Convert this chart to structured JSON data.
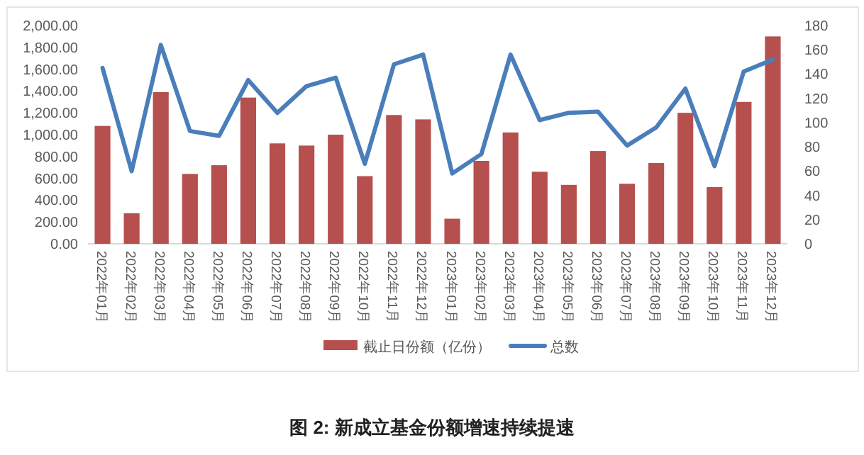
{
  "chart_data": {
    "type": "bar",
    "title": "图 2:  新成立基金份额增速持续提速",
    "categories": [
      "2022年01月",
      "2022年02月",
      "2022年03月",
      "2022年04月",
      "2022年05月",
      "2022年06月",
      "2022年07月",
      "2022年08月",
      "2022年09月",
      "2022年10月",
      "2022年11月",
      "2022年12月",
      "2023年01月",
      "2023年02月",
      "2023年03月",
      "2023年04月",
      "2023年05月",
      "2023年06月",
      "2023年07月",
      "2023年08月",
      "2023年09月",
      "2023年10月",
      "2023年11月",
      "2023年12月"
    ],
    "series": [
      {
        "name": "截止日份额（亿份）",
        "color": "#b5504f",
        "values": [
          1080,
          280,
          1390,
          640,
          720,
          1340,
          920,
          900,
          1000,
          620,
          1180,
          1140,
          230,
          760,
          1020,
          660,
          540,
          850,
          550,
          740,
          1200,
          520,
          1300,
          1900
        ]
      },
      {
        "name": "总数",
        "type": "line",
        "axis": "y2",
        "color": "#4a7ebb",
        "values": [
          145,
          60,
          164,
          93,
          89,
          135,
          108,
          130,
          137,
          66,
          148,
          156,
          58,
          74,
          156,
          102,
          108,
          109,
          81,
          96,
          128,
          64,
          142,
          152
        ]
      }
    ],
    "ylim": [
      0,
      2000
    ],
    "yticks": [
      {
        "value": 0,
        "label": "0.00"
      },
      {
        "value": 200,
        "label": "200.00"
      },
      {
        "value": 400,
        "label": "400.00"
      },
      {
        "value": 600,
        "label": "600.00"
      },
      {
        "value": 800,
        "label": "800.00"
      },
      {
        "value": 1000,
        "label": "1,000.00"
      },
      {
        "value": 1200,
        "label": "1,200.00"
      },
      {
        "value": 1400,
        "label": "1,400.00"
      },
      {
        "value": 1600,
        "label": "1,600.00"
      },
      {
        "value": 1800,
        "label": "1,800.00"
      },
      {
        "value": 2000,
        "label": "2,000.00"
      }
    ],
    "y2lim": [
      0,
      180
    ],
    "y2ticks": [
      0,
      20,
      40,
      60,
      80,
      100,
      120,
      140,
      160,
      180
    ],
    "legend": "bottom",
    "grid": false
  }
}
